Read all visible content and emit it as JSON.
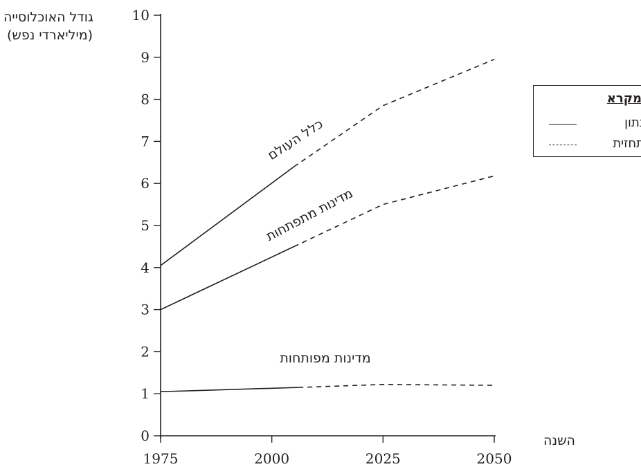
{
  "chart_data": {
    "type": "line",
    "ylabel": "גודל האוכלוסייה",
    "ylabel_unit": "(מיליארדי נפש)",
    "xlabel": "השנה",
    "x_ticks": [
      "1975",
      "2000",
      "2025",
      "2050"
    ],
    "y_ticks": [
      "0",
      "1",
      "2",
      "3",
      "4",
      "5",
      "6",
      "7",
      "8",
      "9",
      "10"
    ],
    "xlim": [
      1975,
      2050
    ],
    "ylim": [
      0,
      10
    ],
    "grid": false,
    "legend": {
      "title": "מקרא",
      "colon": ":",
      "items": [
        {
          "label": "נתון",
          "style": "solid"
        },
        {
          "label": "תחזית",
          "style": "dashed"
        }
      ],
      "position": "right"
    },
    "series": [
      {
        "name": "כלל העולם",
        "actual": [
          [
            1975,
            4.05
          ],
          [
            2005,
            6.4
          ]
        ],
        "projection": [
          [
            2005,
            6.4
          ],
          [
            2025,
            7.85
          ],
          [
            2050,
            8.95
          ]
        ]
      },
      {
        "name": "מדינות מתפתחות",
        "actual": [
          [
            1975,
            3.0
          ],
          [
            2005,
            4.5
          ]
        ],
        "projection": [
          [
            2005,
            4.5
          ],
          [
            2025,
            5.5
          ],
          [
            2050,
            6.18
          ]
        ]
      },
      {
        "name": "מדינות מפותחות",
        "actual": [
          [
            1975,
            1.05
          ],
          [
            2006,
            1.15
          ]
        ],
        "projection": [
          [
            2006,
            1.15
          ],
          [
            2025,
            1.22
          ],
          [
            2050,
            1.2
          ]
        ]
      }
    ]
  },
  "colors": {
    "ink": "#231f20",
    "background": "#ffffff"
  }
}
